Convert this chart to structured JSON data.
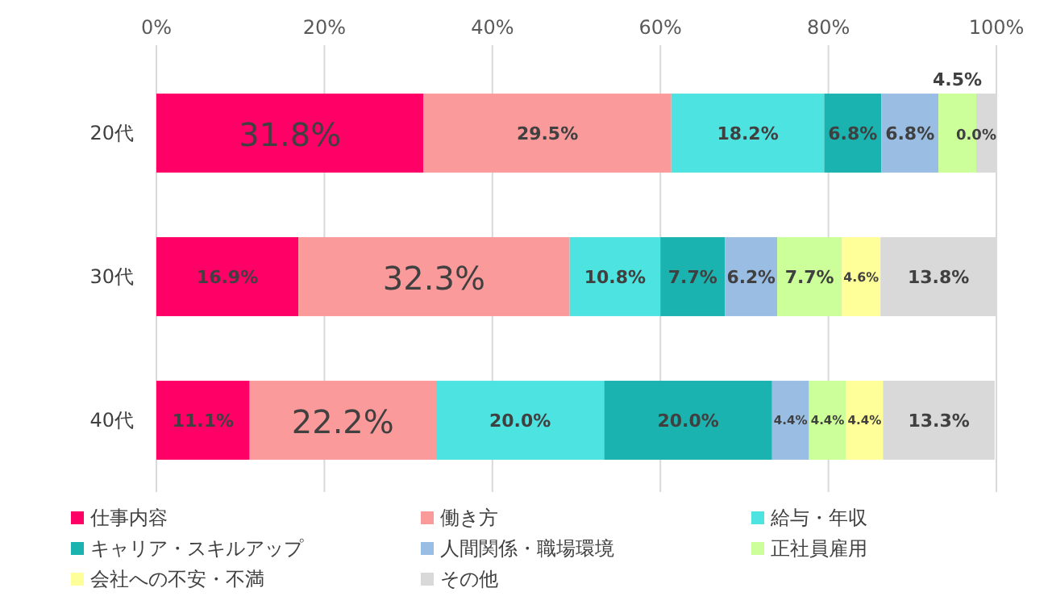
{
  "chart_data": {
    "type": "bar",
    "orientation": "horizontal",
    "stacked": true,
    "categories": [
      "20代",
      "30代",
      "40代"
    ],
    "xlim": [
      0,
      100
    ],
    "xticks": [
      {
        "value": 0,
        "label": "0%"
      },
      {
        "value": 20,
        "label": "20%"
      },
      {
        "value": 40,
        "label": "40%"
      },
      {
        "value": 60,
        "label": "60%"
      },
      {
        "value": 80,
        "label": "80%"
      },
      {
        "value": 100,
        "label": "100%"
      }
    ],
    "grid": "x",
    "legend": "bottom",
    "series": [
      {
        "name": "仕事内容",
        "color": "#ff0066",
        "values": [
          31.8,
          16.9,
          11.1
        ],
        "value_labels": [
          "31.8%",
          "16.9%",
          "11.1%"
        ]
      },
      {
        "name": "働き方",
        "color": "#fa9a9a",
        "values": [
          29.5,
          32.3,
          22.2
        ],
        "value_labels": [
          "29.5%",
          "32.3%",
          "22.2%"
        ]
      },
      {
        "name": "給与・年収",
        "color": "#4de3e0",
        "values": [
          18.2,
          10.8,
          20.0
        ],
        "value_labels": [
          "18.2%",
          "10.8%",
          "20.0%"
        ]
      },
      {
        "name": "キャリア・スキルアップ",
        "color": "#1ab3b0",
        "values": [
          6.8,
          7.7,
          20.0
        ],
        "value_labels": [
          "6.8%",
          "7.7%",
          "20.0%"
        ]
      },
      {
        "name": "人間関係・職場環境",
        "color": "#99bde3",
        "values": [
          6.8,
          6.2,
          4.4
        ],
        "value_labels": [
          "6.8%",
          "6.2%",
          "4.4%"
        ]
      },
      {
        "name": "正社員雇用",
        "color": "#ccff99",
        "values": [
          4.5,
          7.7,
          4.4
        ],
        "value_labels": [
          "4.5%",
          "7.7%",
          "4.4%"
        ]
      },
      {
        "name": "会社への不安・不満",
        "color": "#ffff99",
        "values": [
          0.0,
          4.6,
          4.4
        ],
        "value_labels": [
          "0.0%",
          "4.6%",
          "4.4%"
        ]
      },
      {
        "name": "その他",
        "color": "#d9d9d9",
        "values": [
          2.3,
          13.8,
          13.3
        ],
        "value_labels": [
          null,
          "13.8%",
          "13.3%"
        ]
      }
    ]
  }
}
